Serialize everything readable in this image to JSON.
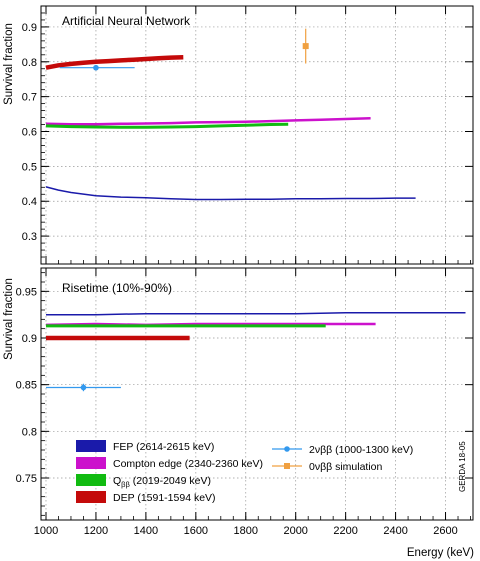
{
  "chart_data": [
    {
      "type": "line",
      "title": "Artificial Neural Network",
      "ylabel": "Survival fraction",
      "xlabel": "",
      "xlim": [
        980,
        2710
      ],
      "ylim": [
        0.22,
        0.96
      ],
      "grid": true,
      "yticks": [
        0.3,
        0.4,
        0.5,
        0.6,
        0.7,
        0.8,
        0.9
      ],
      "ytick_labels": [
        "0.3",
        "0.4",
        "0.5",
        "0.6",
        "0.7",
        "0.8",
        "0.9"
      ],
      "series": [
        {
          "name": "FEP (2614-2615 keV)",
          "color": "#1a1aaa",
          "width": 1.5,
          "x": [
            1000,
            1050,
            1100,
            1200,
            1300,
            1400,
            1500,
            1600,
            1700,
            1800,
            1900,
            2000,
            2100,
            2200,
            2300,
            2400,
            2480
          ],
          "y": [
            0.441,
            0.432,
            0.425,
            0.416,
            0.412,
            0.41,
            0.407,
            0.405,
            0.405,
            0.406,
            0.406,
            0.407,
            0.407,
            0.408,
            0.408,
            0.409,
            0.409
          ]
        },
        {
          "name": "Compton edge (2340-2360 keV)",
          "color": "#cc11cc",
          "width": 2.5,
          "x": [
            1000,
            1100,
            1200,
            1300,
            1400,
            1500,
            1600,
            1700,
            1800,
            1900,
            2000,
            2100,
            2200,
            2300
          ],
          "y": [
            0.622,
            0.621,
            0.621,
            0.622,
            0.623,
            0.624,
            0.626,
            0.627,
            0.628,
            0.63,
            0.632,
            0.634,
            0.636,
            0.638
          ]
        },
        {
          "name": "Q_ββ (2019-2049 keV)",
          "color": "#11bb11",
          "width": 3,
          "x": [
            1000,
            1100,
            1200,
            1300,
            1400,
            1500,
            1600,
            1700,
            1800,
            1900,
            1970
          ],
          "y": [
            0.616,
            0.614,
            0.613,
            0.612,
            0.612,
            0.613,
            0.614,
            0.616,
            0.618,
            0.62,
            0.621
          ]
        },
        {
          "name": "DEP (1591-1594 keV)",
          "color": "#c40a0a",
          "width": 4.5,
          "x": [
            1000,
            1050,
            1100,
            1150,
            1200,
            1250,
            1300,
            1350,
            1400,
            1450,
            1500,
            1550
          ],
          "y": [
            0.783,
            0.79,
            0.794,
            0.797,
            0.8,
            0.802,
            0.804,
            0.806,
            0.808,
            0.81,
            0.812,
            0.813
          ]
        }
      ],
      "points": [
        {
          "name": "2νββ (1000-1300 keV)",
          "color": "#3399ee",
          "marker": "circle",
          "x": 1200,
          "y": 0.783,
          "xerr": [
            1055,
            1355
          ],
          "yerr": [
            0.779,
            0.787
          ]
        },
        {
          "name": "0νββ simulation",
          "color": "#f0a040",
          "marker": "square",
          "x": 2040,
          "y": 0.845,
          "xerr": [
            2030,
            2050
          ],
          "yerr": [
            0.795,
            0.895
          ]
        }
      ]
    },
    {
      "type": "line",
      "title": "Risetime (10%-90%)",
      "ylabel": "Survival fraction",
      "xlabel": "Energy (keV)",
      "xlim": [
        980,
        2710
      ],
      "ylim": [
        0.705,
        0.975
      ],
      "grid": true,
      "yticks": [
        0.75,
        0.8,
        0.85,
        0.9,
        0.95
      ],
      "ytick_labels": [
        "0.75",
        "0.8",
        "0.85",
        "0.9",
        "0.95"
      ],
      "xticks": [
        1000,
        1200,
        1400,
        1600,
        1800,
        2000,
        2200,
        2400,
        2600
      ],
      "xtick_labels": [
        "1000",
        "1200",
        "1400",
        "1600",
        "1800",
        "2000",
        "2200",
        "2400",
        "2600"
      ],
      "series": [
        {
          "name": "FEP (2614-2615 keV)",
          "color": "#1a1aaa",
          "width": 1.5,
          "x": [
            1000,
            1200,
            1400,
            1600,
            1800,
            2000,
            2200,
            2400,
            2600,
            2680
          ],
          "y": [
            0.925,
            0.925,
            0.926,
            0.926,
            0.926,
            0.926,
            0.927,
            0.927,
            0.927,
            0.927
          ]
        },
        {
          "name": "Compton edge (2340-2360 keV)",
          "color": "#cc11cc",
          "width": 2.5,
          "x": [
            1000,
            1200,
            1400,
            1600,
            1800,
            2000,
            2200,
            2320
          ],
          "y": [
            0.914,
            0.915,
            0.914,
            0.915,
            0.915,
            0.915,
            0.915,
            0.915
          ]
        },
        {
          "name": "Q_ββ (2019-2049 keV)",
          "color": "#11bb11",
          "width": 3,
          "x": [
            1000,
            1200,
            1400,
            1600,
            1800,
            2000,
            2120
          ],
          "y": [
            0.913,
            0.913,
            0.913,
            0.913,
            0.913,
            0.913,
            0.913
          ]
        },
        {
          "name": "DEP (1591-1594 keV)",
          "color": "#c40a0a",
          "width": 4.5,
          "x": [
            1000,
            1100,
            1200,
            1300,
            1400,
            1500,
            1575
          ],
          "y": [
            0.9,
            0.9,
            0.9,
            0.9,
            0.9,
            0.9,
            0.9
          ]
        }
      ],
      "points": [
        {
          "name": "2νββ (1000-1300 keV)",
          "color": "#3399ee",
          "marker": "circle",
          "x": 1150,
          "y": 0.847,
          "xerr": [
            1000,
            1300
          ],
          "yerr": [
            0.843,
            0.851
          ]
        }
      ]
    }
  ],
  "legend": {
    "items": [
      {
        "label": "FEP (2614-2615 keV)",
        "color": "#1a1aaa",
        "kind": "box"
      },
      {
        "label": "Compton edge (2340-2360 keV)",
        "color": "#cc11cc",
        "kind": "box"
      },
      {
        "label": "Q",
        "sub": "ββ",
        "rest": " (2019-2049 keV)",
        "color": "#11bb11",
        "kind": "box"
      },
      {
        "label": "DEP (1591-1594 keV)",
        "color": "#c40a0a",
        "kind": "box"
      },
      {
        "label": "2νββ (1000-1300 keV)",
        "color": "#3399ee",
        "kind": "circle"
      },
      {
        "label": "0νββ simulation",
        "color": "#f0a040",
        "kind": "square"
      }
    ]
  },
  "watermark": "GERDA 18-05"
}
